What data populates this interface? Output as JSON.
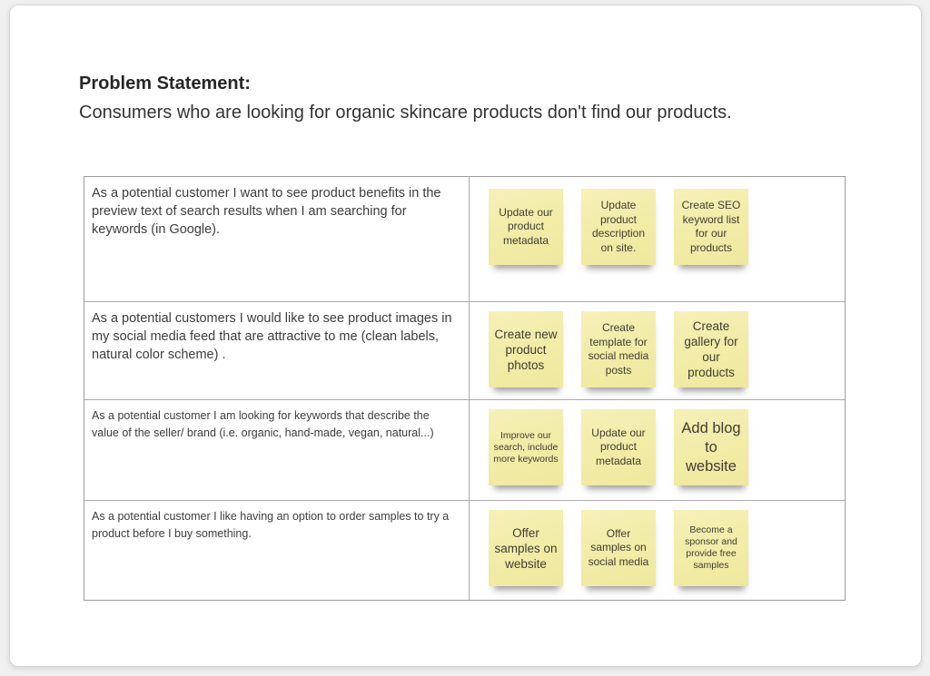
{
  "page": {
    "title": "Problem Statement:",
    "subtitle": "Consumers who are looking for organic skincare products don't find our products."
  },
  "table": {
    "rows": [
      {
        "story": "As a potential customer I want to see product benefits in the preview text of search results when I am searching for keywords (in Google).",
        "notes": [
          {
            "text": "Update our product metadata"
          },
          {
            "text": "Update product description on site."
          },
          {
            "text": "Create SEO keyword list for our products"
          }
        ]
      },
      {
        "story": "As a potential customers I would like to see product images in my social media feed that are attractive to me (clean labels, natural color scheme) .",
        "notes": [
          {
            "text": "Create new product photos"
          },
          {
            "text": "Create template for social media posts"
          },
          {
            "text": "Create gallery for our products"
          }
        ]
      },
      {
        "story": "As a potential customer I am looking for keywords that describe the value of the seller/ brand (i.e. organic, hand-made, vegan, natural...)",
        "notes": [
          {
            "text": "Improve our search, include more keywords"
          },
          {
            "text": "Update our product metadata"
          },
          {
            "text": "Add blog to website"
          }
        ]
      },
      {
        "story": "As a potential customer I like having an option to order samples to try a product before I buy something.",
        "notes": [
          {
            "text": "Offer samples on website"
          },
          {
            "text": "Offer samples on social media"
          },
          {
            "text": "Become a sponsor and provide free samples"
          }
        ]
      }
    ]
  },
  "colors": {
    "sticky_note": "#f2eca8",
    "note_text": "#403d30",
    "table_border": "#9b9b9b",
    "body_text": "#3d3d3d",
    "page_background": "#ffffff",
    "canvas_background": "#f0f0f1"
  }
}
